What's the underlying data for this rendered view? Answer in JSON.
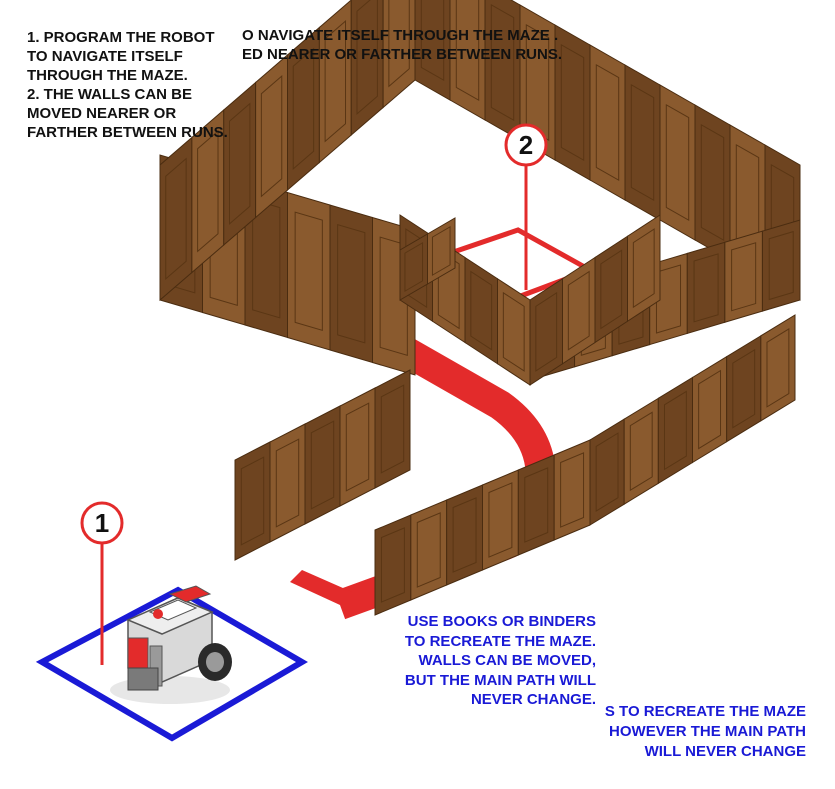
{
  "colors": {
    "wall": "#8a5a2e",
    "wall_dark": "#6e4420",
    "path": "#e32b2b",
    "start_square": "#1a1ad6",
    "callout": "#e32b2b",
    "note_black": "#111111",
    "note_blue": "#1a1ad6"
  },
  "instructions": {
    "line1": "1. PROGRAM THE ROBOT",
    "line2": "TO NAVIGATE ITSELF",
    "line3": "THROUGH THE MAZE.",
    "line4": "2. THE WALLS CAN BE",
    "line5": "MOVED NEARER OR",
    "line6": "FARTHER BETWEEN RUNS."
  },
  "clipped_top": {
    "line1": "O NAVIGATE ITSELF THROUGH THE MAZE .",
    "line2": "ED NEARER OR FARTHER BETWEEN RUNS."
  },
  "notes": {
    "line1": "USE BOOKS OR BINDERS",
    "line2": "TO RECREATE THE MAZE.",
    "line3": "WALLS CAN BE MOVED,",
    "line4": "BUT THE MAIN PATH WILL",
    "line5": "NEVER CHANGE."
  },
  "clipped_bottom": {
    "line1": "S TO RECREATE THE MAZE",
    "line2": "HOWEVER THE MAIN PATH",
    "line3": "WILL NEVER CHANGE"
  },
  "callouts": {
    "start": "1",
    "finish": "2"
  },
  "icons": {
    "robot": "ev3-robot-icon"
  }
}
